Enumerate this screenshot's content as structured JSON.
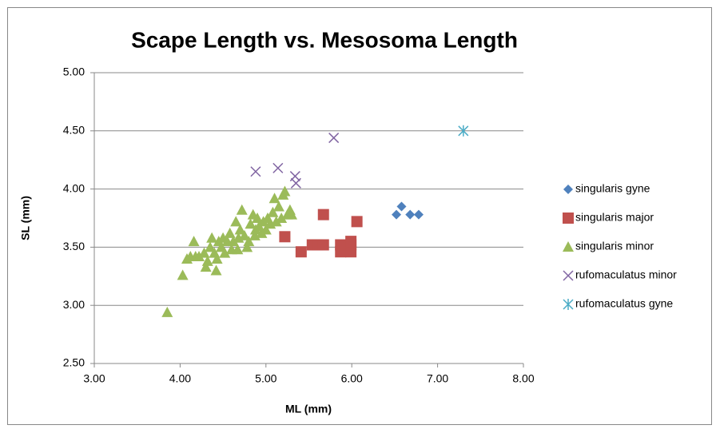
{
  "chart_data": {
    "type": "scatter",
    "title": "Scape Length vs. Mesosoma Length",
    "x_label": "ML (mm)",
    "y_label": "SL (mm)",
    "xlim": [
      3,
      8
    ],
    "ylim": [
      2.5,
      5
    ],
    "xticks": [
      {
        "value": 3,
        "label": "3.00"
      },
      {
        "value": 4,
        "label": "4.00"
      },
      {
        "value": 5,
        "label": "5.00"
      },
      {
        "value": 6,
        "label": "6.00"
      },
      {
        "value": 7,
        "label": "7.00"
      },
      {
        "value": 8,
        "label": "8.00"
      }
    ],
    "yticks": [
      {
        "value": 2.5,
        "label": "2.50"
      },
      {
        "value": 3,
        "label": "3.00"
      },
      {
        "value": 3.5,
        "label": "3.50"
      },
      {
        "value": 4,
        "label": "4.00"
      },
      {
        "value": 4.5,
        "label": "4.50"
      },
      {
        "value": 5,
        "label": "5.00"
      }
    ],
    "grid": true,
    "legend": "right",
    "series": [
      {
        "name": "singularis gyne",
        "color": "#4f81bd",
        "marker": "diamond",
        "x": [
          6.52,
          6.58,
          6.68,
          6.78
        ],
        "values": [
          3.78,
          3.85,
          3.78,
          3.78
        ]
      },
      {
        "name": "singularis major",
        "color": "#c0504d",
        "marker": "square",
        "x": [
          5.22,
          5.41,
          5.54,
          5.6,
          5.67,
          5.67,
          5.87,
          5.87,
          5.99,
          5.99,
          5.99,
          6.06
        ],
        "values": [
          3.59,
          3.46,
          3.52,
          3.52,
          3.52,
          3.78,
          3.46,
          3.52,
          3.46,
          3.52,
          3.55,
          3.72
        ]
      },
      {
        "name": "singularis minor",
        "color": "#9bbb59",
        "marker": "triangle",
        "x": [
          3.85,
          4.03,
          4.08,
          4.12,
          4.16,
          4.18,
          4.22,
          4.28,
          4.3,
          4.32,
          4.35,
          4.37,
          4.4,
          4.42,
          4.43,
          4.45,
          4.48,
          4.5,
          4.52,
          4.55,
          4.58,
          4.6,
          4.62,
          4.65,
          4.67,
          4.68,
          4.7,
          4.72,
          4.75,
          4.78,
          4.8,
          4.82,
          4.85,
          4.87,
          4.88,
          4.9,
          4.92,
          4.95,
          4.97,
          5.0,
          5.02,
          5.05,
          5.08,
          5.1,
          5.12,
          5.15,
          5.18,
          5.2,
          5.22,
          5.25,
          5.28,
          5.3
        ],
        "values": [
          2.94,
          3.26,
          3.4,
          3.42,
          3.55,
          3.42,
          3.42,
          3.45,
          3.33,
          3.38,
          3.5,
          3.58,
          3.45,
          3.3,
          3.4,
          3.55,
          3.5,
          3.58,
          3.45,
          3.55,
          3.62,
          3.48,
          3.55,
          3.72,
          3.48,
          3.58,
          3.65,
          3.82,
          3.6,
          3.5,
          3.55,
          3.7,
          3.78,
          3.6,
          3.65,
          3.75,
          3.68,
          3.62,
          3.72,
          3.65,
          3.75,
          3.7,
          3.8,
          3.92,
          3.72,
          3.85,
          3.75,
          3.95,
          3.98,
          3.78,
          3.82,
          3.78
        ]
      },
      {
        "name": "rufomaculatus minor",
        "color": "#8064a2",
        "marker": "x",
        "x": [
          4.88,
          5.14,
          5.34,
          5.35,
          5.79
        ],
        "values": [
          4.15,
          4.18,
          4.11,
          4.05,
          4.44
        ]
      },
      {
        "name": "rufomaculatus gyne",
        "color": "#4bacc6",
        "marker": "star",
        "x": [
          7.3
        ],
        "values": [
          4.5
        ]
      }
    ]
  }
}
